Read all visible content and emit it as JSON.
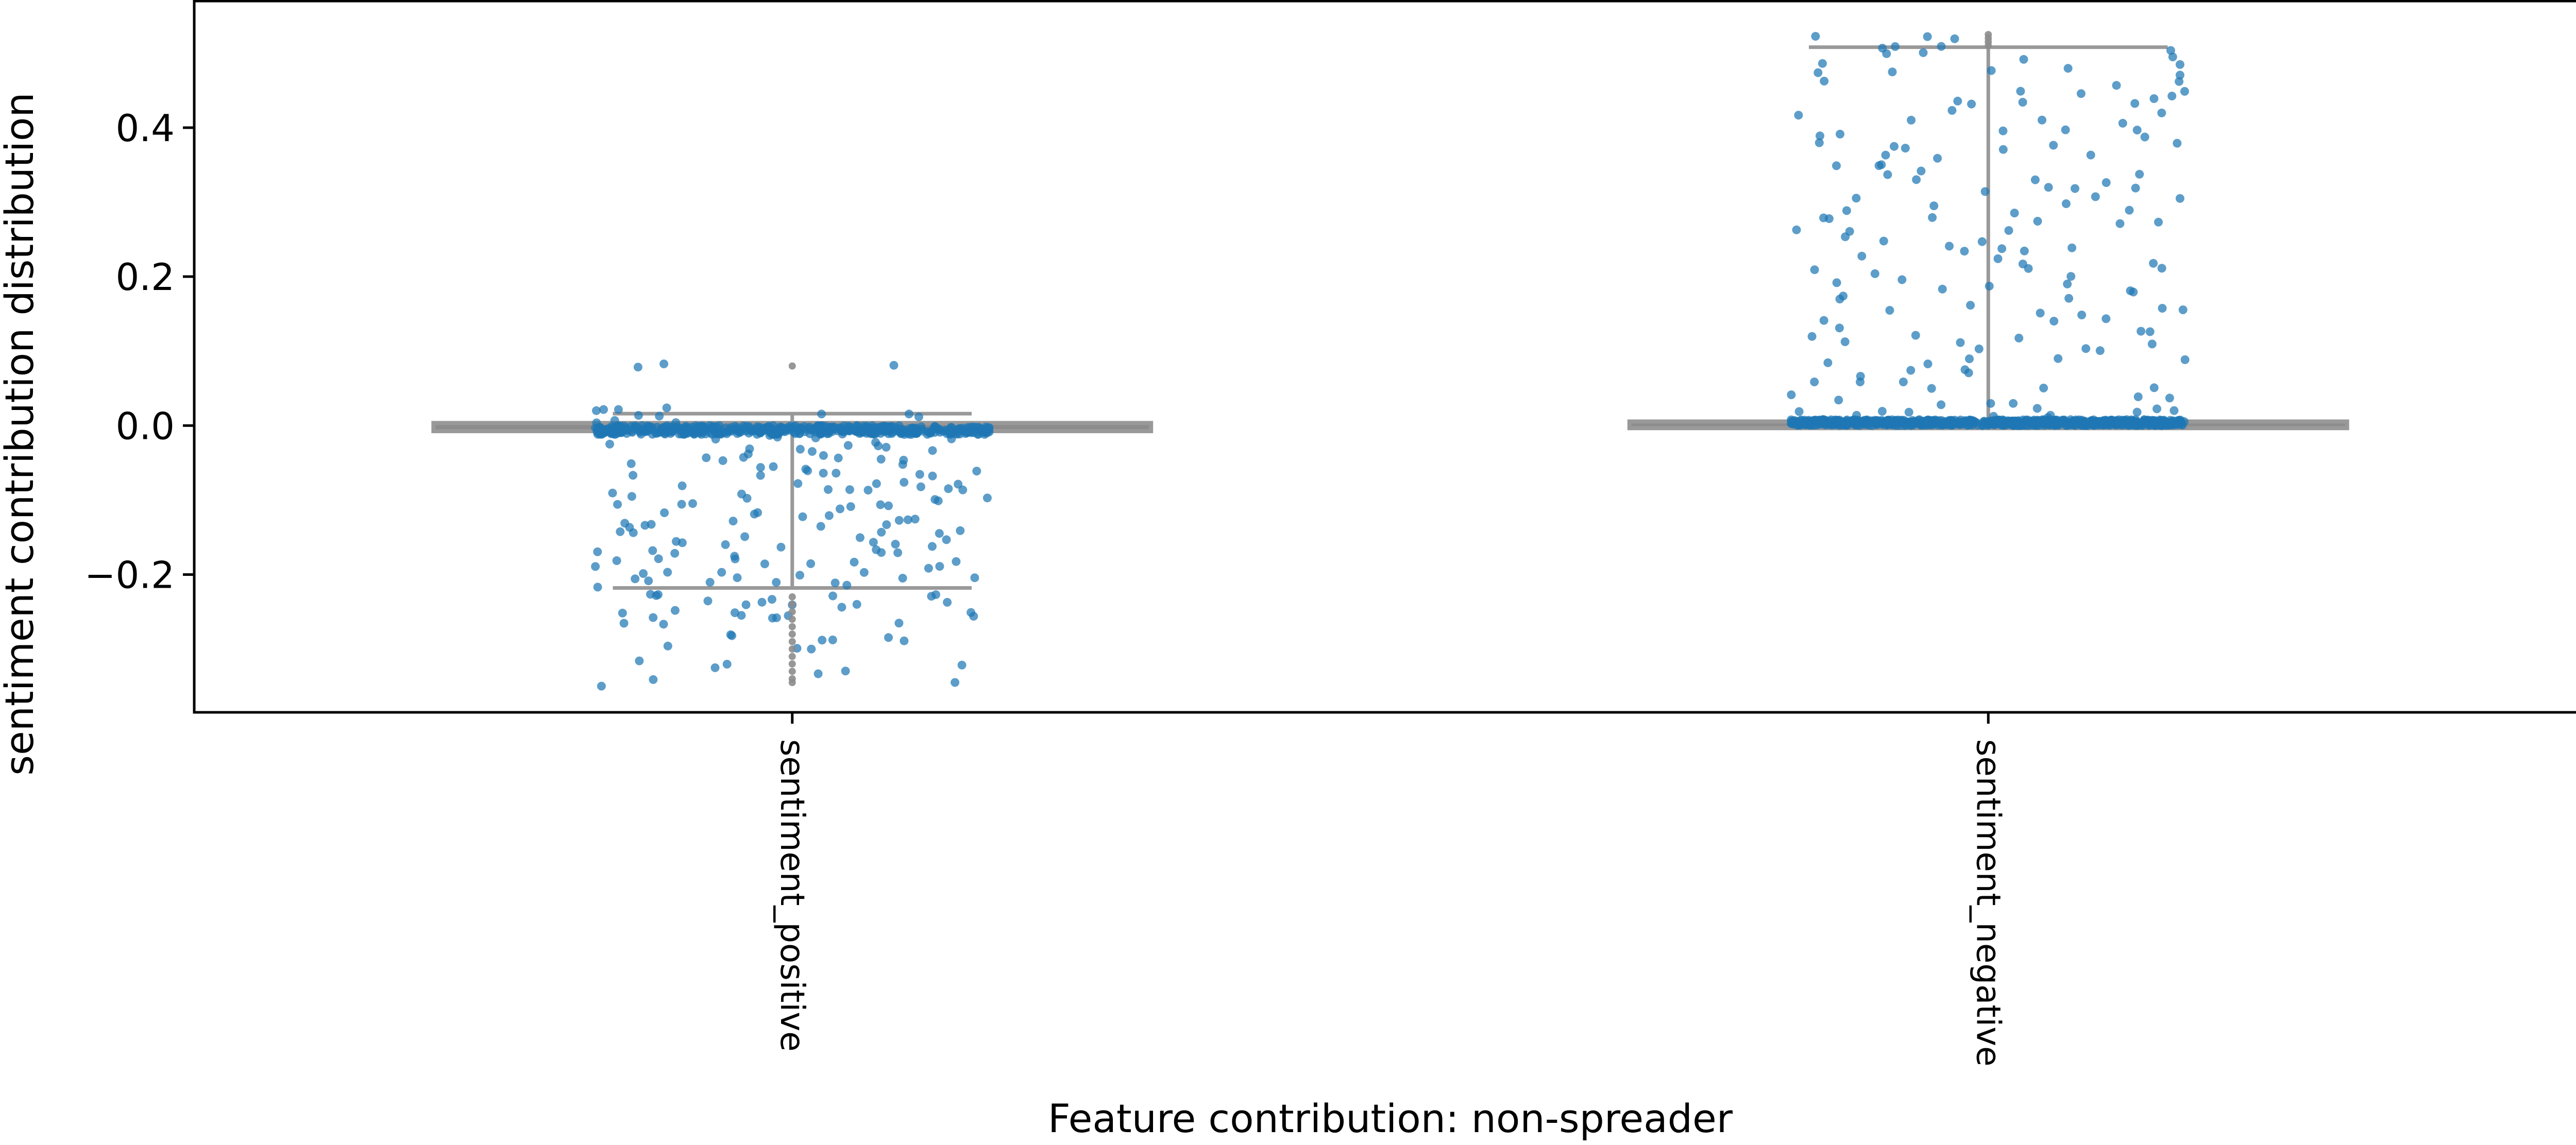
{
  "chart_data": {
    "type": "scatter",
    "subtype": "strip-box",
    "title": "",
    "xlabel": "Feature contribution: non-spreader",
    "ylabel": "sentiment contribution distribution",
    "ylim": [
      -0.385,
      0.57
    ],
    "yticks": [
      -0.2,
      0.0,
      0.2,
      0.4
    ],
    "ytick_labels": [
      "−0.2",
      "0.0",
      "0.2",
      "0.4"
    ],
    "grid": false,
    "legend": "none",
    "point_color": "#1f77b4",
    "outlier_color": "#8c8c8c",
    "box_color": "#999999",
    "categories": [
      "sentiment_positive",
      "sentiment_negative"
    ],
    "groups": [
      {
        "category": "sentiment_positive",
        "point_count": 700,
        "spread_values": [
          -0.345,
          -0.33,
          -0.32,
          -0.3,
          -0.29,
          -0.28,
          -0.27,
          -0.26,
          -0.255,
          -0.25,
          -0.245,
          -0.24,
          -0.235,
          -0.23,
          -0.225,
          -0.215,
          -0.21,
          -0.205,
          -0.2,
          -0.195,
          -0.19,
          -0.185,
          -0.18,
          -0.175,
          -0.17,
          -0.165,
          -0.16,
          -0.155,
          -0.15,
          -0.145,
          -0.14,
          -0.135,
          -0.13,
          -0.125,
          -0.12,
          -0.115,
          -0.11,
          -0.105,
          -0.1,
          -0.095,
          -0.09,
          -0.085,
          -0.08,
          -0.075,
          -0.07,
          -0.065,
          -0.06,
          -0.055,
          -0.05,
          -0.045,
          -0.04,
          -0.035,
          -0.03,
          -0.025,
          -0.02,
          -0.015,
          0.005,
          0.01,
          0.015,
          0.02,
          0.08
        ],
        "box": {
          "q1": -0.004,
          "median": -0.001,
          "q3": 0.0,
          "whisker_low": -0.218,
          "whisker_high": 0.016
        },
        "outliers": [
          -0.23,
          -0.24,
          -0.25,
          -0.26,
          -0.27,
          -0.28,
          -0.29,
          -0.3,
          -0.31,
          -0.32,
          -0.33,
          -0.34,
          -0.345,
          0.08
        ]
      },
      {
        "category": "sentiment_negative",
        "point_count": 950,
        "spread_values": [
          0.005,
          0.01,
          0.015,
          0.02,
          0.025,
          0.03,
          0.04,
          0.05,
          0.06,
          0.07,
          0.08,
          0.09,
          0.1,
          0.11,
          0.12,
          0.13,
          0.14,
          0.15,
          0.16,
          0.17,
          0.18,
          0.19,
          0.2,
          0.21,
          0.22,
          0.23,
          0.24,
          0.25,
          0.26,
          0.27,
          0.28,
          0.29,
          0.3,
          0.31,
          0.32,
          0.33,
          0.34,
          0.35,
          0.36,
          0.37,
          0.38,
          0.39,
          0.4,
          0.41,
          0.42,
          0.43,
          0.44,
          0.45,
          0.46,
          0.47,
          0.48,
          0.49,
          0.5,
          0.51,
          0.52
        ],
        "box": {
          "q1": 0.0,
          "median": 0.0,
          "q3": 0.002,
          "whisker_low": 0.0,
          "whisker_high": 0.508
        },
        "outliers": [
          0.51,
          0.515,
          0.52,
          0.525
        ]
      }
    ]
  }
}
